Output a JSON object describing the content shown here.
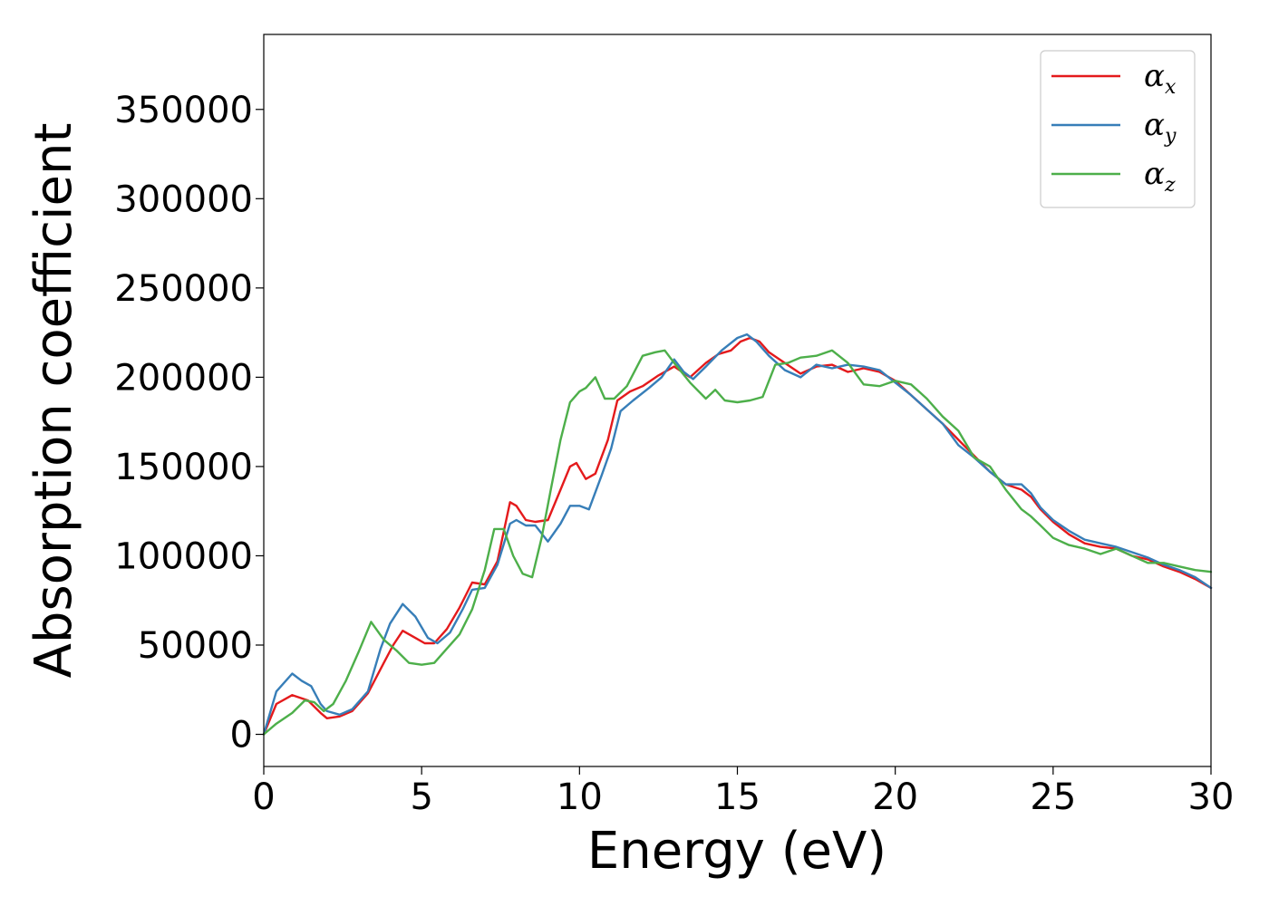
{
  "chart_data": {
    "type": "line",
    "xlabel": "Energy (eV)",
    "ylabel": "Absorption coefficient",
    "xlim": [
      0,
      30
    ],
    "ylim": [
      -18000,
      392000
    ],
    "xticks": [
      0,
      5,
      10,
      15,
      20,
      25,
      30
    ],
    "xtick_labels": [
      "0",
      "5",
      "10",
      "15",
      "20",
      "25",
      "30"
    ],
    "yticks": [
      0,
      50000,
      100000,
      150000,
      200000,
      250000,
      300000,
      350000
    ],
    "ytick_labels": [
      "0",
      "50000",
      "100000",
      "150000",
      "200000",
      "250000",
      "300000",
      "350000"
    ],
    "grid": false,
    "legend_position": "top-right",
    "series": [
      {
        "name": "α_x",
        "symbol": "α",
        "subscript": "x",
        "color": "#e41a1c",
        "x": [
          0,
          0.4,
          0.9,
          1.4,
          1.8,
          2.0,
          2.4,
          2.8,
          3.3,
          3.8,
          4.1,
          4.4,
          4.8,
          5.1,
          5.4,
          5.8,
          6.2,
          6.6,
          7.0,
          7.4,
          7.8,
          8.0,
          8.3,
          8.6,
          9.0,
          9.4,
          9.7,
          9.9,
          10.2,
          10.5,
          10.9,
          11.2,
          11.6,
          12.0,
          12.5,
          13.0,
          13.5,
          14.0,
          14.4,
          14.8,
          15.1,
          15.4,
          15.7,
          16.0,
          16.5,
          17.0,
          17.5,
          18.0,
          18.5,
          19.0,
          19.5,
          20.0,
          20.5,
          21.0,
          21.5,
          22.0,
          22.5,
          23.0,
          23.5,
          24.0,
          24.3,
          24.6,
          25.0,
          25.5,
          26.0,
          26.5,
          27.0,
          27.5,
          28.0,
          28.5,
          29.0,
          29.5,
          30.0
        ],
        "y": [
          0,
          17000,
          22000,
          19000,
          12000,
          9000,
          10000,
          13000,
          23000,
          40000,
          50000,
          58000,
          54000,
          51000,
          51000,
          59000,
          71000,
          85000,
          84000,
          97000,
          130000,
          128000,
          120000,
          119000,
          120000,
          137000,
          150000,
          152000,
          143000,
          146000,
          165000,
          187000,
          192000,
          195000,
          201000,
          206000,
          200000,
          208000,
          213000,
          215000,
          220000,
          222000,
          220000,
          214000,
          208000,
          202000,
          206000,
          207000,
          203000,
          205000,
          203000,
          198000,
          190000,
          182000,
          174000,
          165000,
          156000,
          147000,
          140000,
          137000,
          133000,
          126000,
          119000,
          112000,
          107000,
          105000,
          104000,
          100000,
          98000,
          94000,
          91000,
          87000,
          82000
        ]
      },
      {
        "name": "α_y",
        "symbol": "α",
        "subscript": "y",
        "color": "#377eb8",
        "x": [
          0,
          0.4,
          0.9,
          1.2,
          1.5,
          1.8,
          2.0,
          2.4,
          2.8,
          3.3,
          3.7,
          4.0,
          4.4,
          4.8,
          5.2,
          5.5,
          5.9,
          6.3,
          6.6,
          7.0,
          7.4,
          7.8,
          8.0,
          8.3,
          8.6,
          9.0,
          9.4,
          9.7,
          10.0,
          10.3,
          10.7,
          11.0,
          11.3,
          11.7,
          12.2,
          12.6,
          13.0,
          13.3,
          13.6,
          14.0,
          14.5,
          15.0,
          15.3,
          15.6,
          16.0,
          16.5,
          17.0,
          17.5,
          18.0,
          18.5,
          19.0,
          19.5,
          20.0,
          20.5,
          21.0,
          21.5,
          22.0,
          22.5,
          23.0,
          23.5,
          24.0,
          24.3,
          24.6,
          25.0,
          25.5,
          26.0,
          26.5,
          27.0,
          27.5,
          28.0,
          28.5,
          29.0,
          29.5,
          30.0
        ],
        "y": [
          0,
          24000,
          34000,
          30000,
          27000,
          17000,
          13000,
          11000,
          14000,
          24000,
          48000,
          62000,
          73000,
          66000,
          54000,
          51000,
          57000,
          70000,
          81000,
          82000,
          95000,
          118000,
          120000,
          117000,
          117000,
          108000,
          118000,
          128000,
          128000,
          126000,
          145000,
          160000,
          181000,
          187000,
          194000,
          200000,
          210000,
          203000,
          199000,
          206000,
          215000,
          222000,
          224000,
          220000,
          212000,
          204000,
          200000,
          207000,
          205000,
          207000,
          206000,
          204000,
          197000,
          190000,
          182000,
          174000,
          162000,
          155000,
          147000,
          140000,
          140000,
          135000,
          127000,
          120000,
          114000,
          109000,
          107000,
          105000,
          102000,
          99000,
          95000,
          92000,
          88000,
          82000
        ]
      },
      {
        "name": "α_z",
        "symbol": "α",
        "subscript": "z",
        "color": "#4daf4a",
        "x": [
          0,
          0.4,
          0.9,
          1.3,
          1.6,
          1.9,
          2.2,
          2.6,
          3.0,
          3.4,
          3.8,
          4.2,
          4.6,
          5.0,
          5.4,
          5.8,
          6.2,
          6.6,
          7.0,
          7.3,
          7.6,
          7.9,
          8.2,
          8.5,
          8.8,
          9.1,
          9.4,
          9.7,
          10.0,
          10.2,
          10.5,
          10.8,
          11.1,
          11.5,
          12.0,
          12.4,
          12.7,
          13.0,
          13.5,
          14.0,
          14.3,
          14.6,
          15.0,
          15.4,
          15.8,
          16.2,
          16.6,
          17.0,
          17.5,
          18.0,
          18.5,
          19.0,
          19.5,
          20.0,
          20.5,
          21.0,
          21.5,
          22.0,
          22.5,
          23.0,
          23.5,
          24.0,
          24.3,
          24.6,
          25.0,
          25.5,
          26.0,
          26.5,
          27.0,
          27.5,
          28.0,
          28.5,
          29.0,
          29.5,
          30.0
        ],
        "y": [
          0,
          6000,
          12000,
          19000,
          18000,
          13000,
          17000,
          30000,
          46000,
          63000,
          53000,
          47000,
          40000,
          39000,
          40000,
          48000,
          56000,
          70000,
          92000,
          115000,
          115000,
          100000,
          90000,
          88000,
          110000,
          138000,
          165000,
          186000,
          192000,
          194000,
          200000,
          188000,
          188000,
          195000,
          212000,
          214000,
          215000,
          208000,
          197000,
          188000,
          193000,
          187000,
          186000,
          187000,
          189000,
          207000,
          208000,
          211000,
          212000,
          215000,
          208000,
          196000,
          195000,
          198000,
          196000,
          188000,
          178000,
          170000,
          155000,
          150000,
          137000,
          126000,
          122000,
          117000,
          110000,
          106000,
          104000,
          101000,
          104000,
          100000,
          96000,
          96000,
          94000,
          92000,
          91000
        ]
      }
    ]
  }
}
